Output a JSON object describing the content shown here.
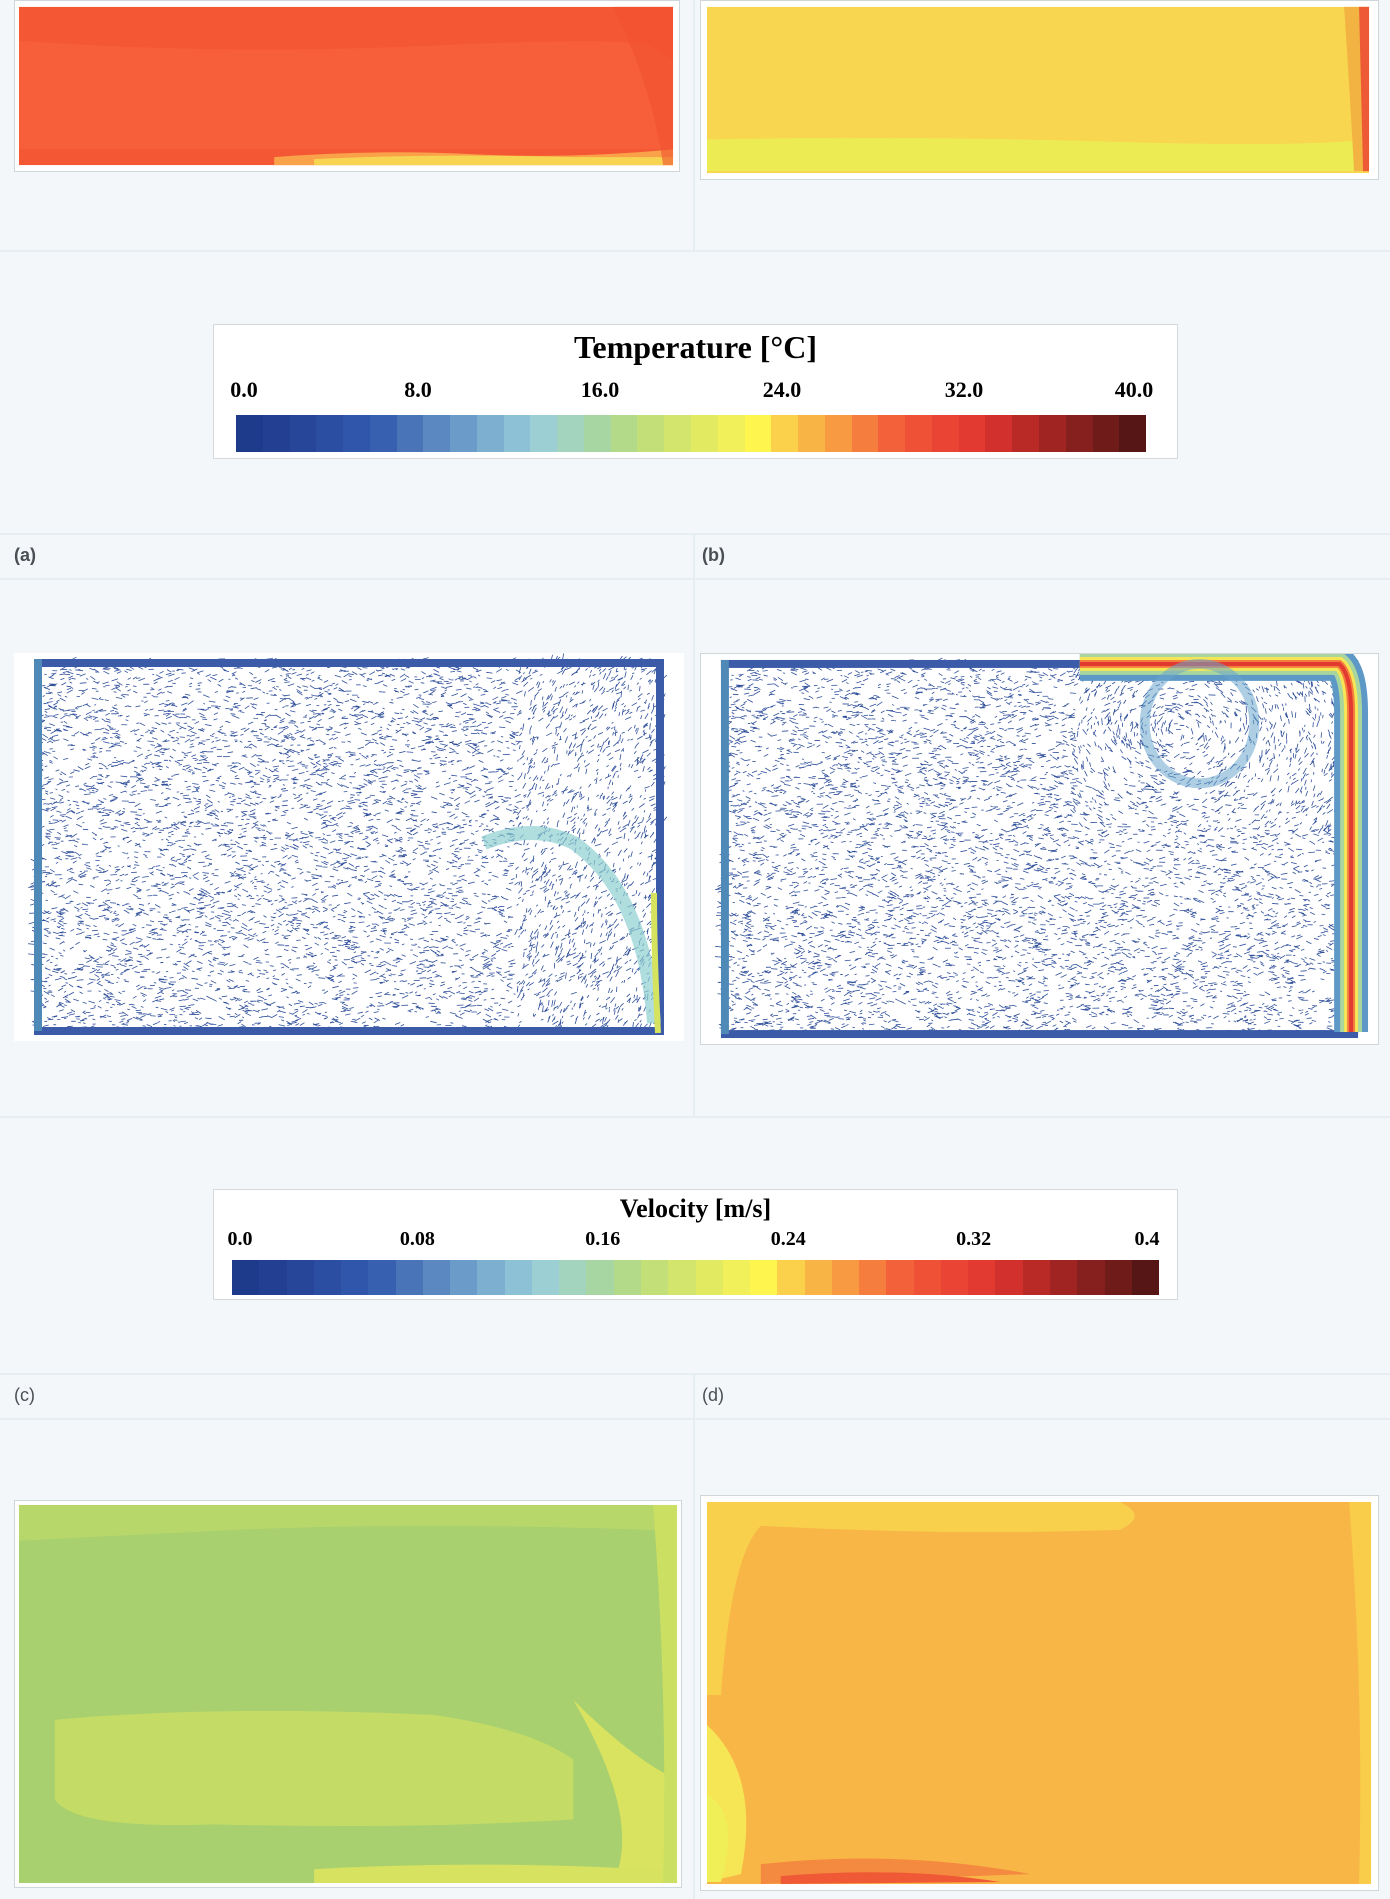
{
  "temperature_colorbar": {
    "title": "Temperature [°C]",
    "ticks": [
      "0.0",
      "8.0",
      "16.0",
      "24.0",
      "32.0",
      "40.0"
    ],
    "range": [
      0,
      40
    ],
    "colors": [
      "#1e3a8a",
      "#233f91",
      "#27469a",
      "#2b4ea2",
      "#2f56aa",
      "#3760b1",
      "#4a74b8",
      "#5b88c0",
      "#6b9bc8",
      "#7dafd0",
      "#8dc2d6",
      "#9bcfd3",
      "#a3d4be",
      "#a8d6a2",
      "#b3da88",
      "#c3df77",
      "#d3e56c",
      "#e2ea62",
      "#f1ef5a",
      "#fef64f",
      "#fbd04a",
      "#f9b446",
      "#f89a42",
      "#f57d3e",
      "#f2613a",
      "#ef5137",
      "#ea4534",
      "#e23a31",
      "#d1302c",
      "#b92a27",
      "#a02522",
      "#86201e",
      "#6e1b1a",
      "#571616"
    ]
  },
  "velocity_colorbar": {
    "title": "Velocity [m/s]",
    "ticks": [
      "0.0",
      "0.08",
      "0.16",
      "0.24",
      "0.32",
      "0.4"
    ],
    "range": [
      0,
      0.4
    ],
    "colors": [
      "#1e3a8a",
      "#233f91",
      "#27469a",
      "#2b4ea2",
      "#2f56aa",
      "#3760b1",
      "#4a74b8",
      "#5b88c0",
      "#6b9bc8",
      "#7dafd0",
      "#8dc2d6",
      "#9bcfd3",
      "#a3d4be",
      "#a8d6a2",
      "#b3da88",
      "#c3df77",
      "#d3e56c",
      "#e2ea62",
      "#f1ef5a",
      "#fef64f",
      "#fbd04a",
      "#f9b446",
      "#f89a42",
      "#f57d3e",
      "#f2613a",
      "#ef5137",
      "#ea4534",
      "#e23a31",
      "#d1302c",
      "#b92a27",
      "#a02522",
      "#86201e",
      "#6e1b1a",
      "#571616"
    ]
  },
  "labels": {
    "a": "(a)",
    "b": "(b)",
    "c": "(c)",
    "d": "(d)"
  },
  "panels": {
    "top_left_base": "#f45733",
    "top_right_base": "#f8d64f",
    "bottom_left_base": "#a9d06f",
    "bottom_right_base": "#f8b646"
  }
}
